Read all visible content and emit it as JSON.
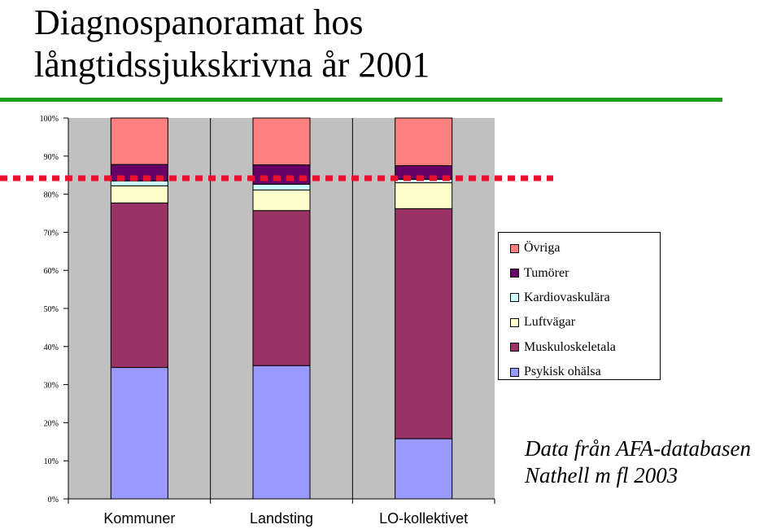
{
  "page": {
    "title_line1": "Diagnospanoramat hos",
    "title_line2": "långtidssjukskrivna år 2001",
    "source_line1": "Data från AFA-databasen",
    "source_line2": "Nathell m fl 2003",
    "accent_color": "#1aa01a",
    "marker_color": "#e8112d"
  },
  "chart_data": {
    "type": "bar",
    "stacked": true,
    "percent": true,
    "categories": [
      "Kommuner",
      "Landsting",
      "LO-kollektivet"
    ],
    "y_ticks": [
      "0%",
      "10%",
      "20%",
      "30%",
      "40%",
      "50%",
      "60%",
      "70%",
      "80%",
      "90%",
      "100%"
    ],
    "ylim": [
      0,
      100
    ],
    "grid": false,
    "plot_background": "#c0c0c0",
    "series": [
      {
        "name": "Psykisk ohälsa",
        "color": "#9999ff",
        "values": [
          34.5,
          35.0,
          15.8
        ]
      },
      {
        "name": "Muskuloskeletala",
        "color": "#993366",
        "values": [
          43.2,
          40.7,
          60.4
        ]
      },
      {
        "name": "Luftvägar",
        "color": "#ffffcc",
        "values": [
          4.5,
          5.4,
          6.8
        ]
      },
      {
        "name": "Kardiovaskulära",
        "color": "#ccffff",
        "values": [
          1.3,
          1.5,
          0.9
        ]
      },
      {
        "name": "Tumörer",
        "color": "#660066",
        "values": [
          4.3,
          5.1,
          3.6
        ]
      },
      {
        "name": "Övriga",
        "color": "#ff8080",
        "values": [
          12.2,
          12.3,
          12.5
        ]
      }
    ],
    "legend": {
      "position": "right",
      "entries": [
        "Övriga",
        "Tumörer",
        "Kardiovaskulära",
        "Luftvägar",
        "Muskuloskeletala",
        "Psykisk ohälsa"
      ]
    },
    "reference_line": {
      "value": 84.2,
      "style": "dashed",
      "color": "#e8112d"
    },
    "xlabel": "",
    "ylabel": ""
  }
}
